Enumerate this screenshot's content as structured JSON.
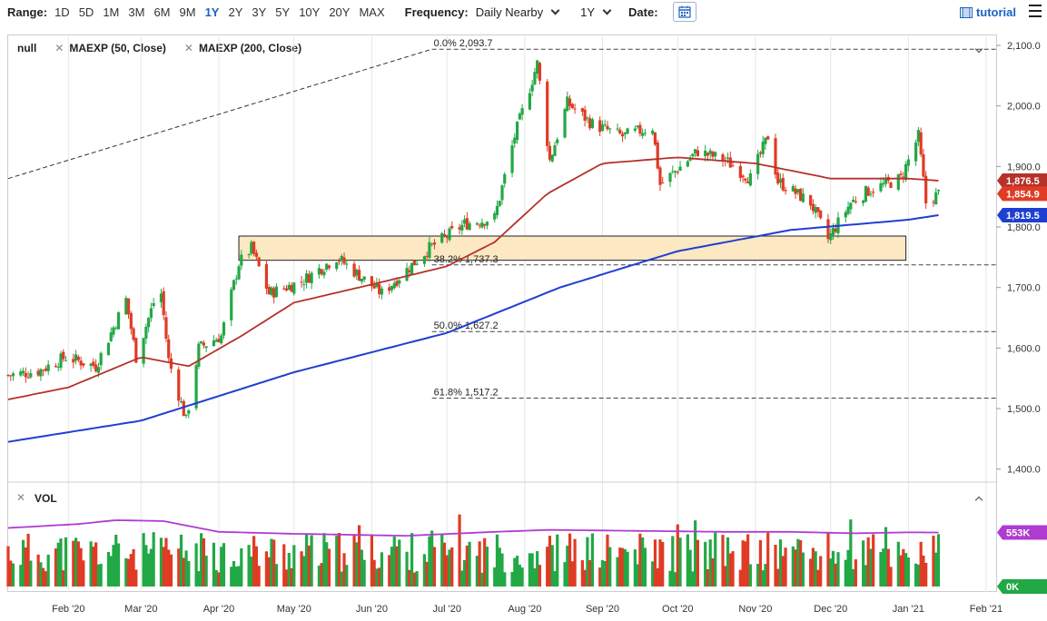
{
  "toolbar": {
    "range_label": "Range:",
    "ranges": [
      "1D",
      "5D",
      "1M",
      "3M",
      "6M",
      "9M",
      "1Y",
      "2Y",
      "3Y",
      "5Y",
      "10Y",
      "20Y",
      "MAX"
    ],
    "active_range": "1Y",
    "frequency_label": "Frequency:",
    "frequency_value": "Daily Nearby",
    "period_value": "1Y",
    "date_label": "Date:",
    "tutorial_label": "tutorial"
  },
  "legend": {
    "symbol": "null",
    "study1": "MAEXP (50, Close)",
    "study2": "MAEXP (200, Close)"
  },
  "volume": {
    "title": "VOL"
  },
  "colors": {
    "up": "#22a845",
    "down": "#e03b24",
    "ma50": "#b5322a",
    "ma200": "#1f3fd1",
    "vol_avg": "#b03bd1",
    "zone_fill": "#fde8c4",
    "zone_stroke": "#222222"
  },
  "chart_data": [
    {
      "type": "candlestick",
      "title": "",
      "ylim": [
        1380,
        2115
      ],
      "yticks": [
        1400,
        1500,
        1600,
        1700,
        1800,
        1900,
        2000,
        2100
      ],
      "ytick_labels": [
        "1,400.0",
        "1,500.0",
        "1,600.0",
        "1,700.0",
        "1,800.0",
        "1,900.0",
        "2,000.0",
        "2,100.0"
      ],
      "x_start": "2020-01-08",
      "x_end": "2021-02-05",
      "xtick_dates": [
        "2020-02-01",
        "2020-03-01",
        "2020-04-01",
        "2020-05-01",
        "2020-06-01",
        "2020-07-01",
        "2020-08-01",
        "2020-09-01",
        "2020-10-01",
        "2020-11-01",
        "2020-12-01",
        "2021-01-01",
        "2021-02-01"
      ],
      "xtick_labels": [
        "Feb '20",
        "Mar '20",
        "Apr '20",
        "May '20",
        "Jun '20",
        "Jul '20",
        "Aug '20",
        "Sep '20",
        "Oct '20",
        "Nov '20",
        "Dec '20",
        "Jan '21",
        "Feb '21"
      ],
      "price_path": [
        [
          "2020-01-08",
          1555
        ],
        [
          "2020-01-20",
          1562
        ],
        [
          "2020-01-31",
          1585
        ],
        [
          "2020-02-12",
          1570
        ],
        [
          "2020-02-24",
          1680
        ],
        [
          "2020-02-28",
          1585
        ],
        [
          "2020-03-06",
          1675
        ],
        [
          "2020-03-09",
          1690
        ],
        [
          "2020-03-12",
          1580
        ],
        [
          "2020-03-19",
          1480
        ],
        [
          "2020-03-24",
          1600
        ],
        [
          "2020-04-02",
          1620
        ],
        [
          "2020-04-09",
          1740
        ],
        [
          "2020-04-14",
          1765
        ],
        [
          "2020-04-21",
          1690
        ],
        [
          "2020-05-04",
          1710
        ],
        [
          "2020-05-18",
          1750
        ],
        [
          "2020-06-05",
          1690
        ],
        [
          "2020-06-24",
          1765
        ],
        [
          "2020-07-08",
          1805
        ],
        [
          "2020-07-20",
          1815
        ],
        [
          "2020-07-28",
          1950
        ],
        [
          "2020-08-06",
          2070
        ],
        [
          "2020-08-11",
          1910
        ],
        [
          "2020-08-18",
          2005
        ],
        [
          "2020-08-28",
          1970
        ],
        [
          "2020-09-09",
          1950
        ],
        [
          "2020-09-21",
          1965
        ],
        [
          "2020-09-24",
          1870
        ],
        [
          "2020-10-09",
          1925
        ],
        [
          "2020-10-20",
          1910
        ],
        [
          "2020-10-30",
          1880
        ],
        [
          "2020-11-06",
          1950
        ],
        [
          "2020-11-10",
          1875
        ],
        [
          "2020-11-23",
          1840
        ],
        [
          "2020-11-30",
          1780
        ],
        [
          "2020-12-09",
          1840
        ],
        [
          "2020-12-16",
          1860
        ],
        [
          "2020-12-29",
          1880
        ],
        [
          "2021-01-05",
          1950
        ],
        [
          "2021-01-08",
          1840
        ],
        [
          "2021-01-13",
          1855
        ]
      ],
      "ma50_path": [
        [
          "2020-01-08",
          1515
        ],
        [
          "2020-02-01",
          1535
        ],
        [
          "2020-03-01",
          1585
        ],
        [
          "2020-03-20",
          1570
        ],
        [
          "2020-04-10",
          1620
        ],
        [
          "2020-05-01",
          1675
        ],
        [
          "2020-06-01",
          1705
        ],
        [
          "2020-07-01",
          1735
        ],
        [
          "2020-07-20",
          1775
        ],
        [
          "2020-08-10",
          1855
        ],
        [
          "2020-09-01",
          1905
        ],
        [
          "2020-10-01",
          1915
        ],
        [
          "2020-11-01",
          1905
        ],
        [
          "2020-12-01",
          1880
        ],
        [
          "2021-01-01",
          1880
        ],
        [
          "2021-01-13",
          1876.5
        ]
      ],
      "ma200_path": [
        [
          "2020-01-08",
          1445
        ],
        [
          "2020-03-01",
          1480
        ],
        [
          "2020-05-01",
          1560
        ],
        [
          "2020-07-01",
          1625
        ],
        [
          "2020-08-15",
          1700
        ],
        [
          "2020-10-01",
          1760
        ],
        [
          "2020-11-15",
          1795
        ],
        [
          "2021-01-01",
          1812
        ],
        [
          "2021-01-13",
          1819.5
        ]
      ],
      "fibonacci": [
        {
          "label": "0.0% 2,093.7",
          "level": 2093.7
        },
        {
          "label": "38.2% 1,737.3",
          "level": 1737.3
        },
        {
          "label": "50.0% 1,627.2",
          "level": 1627.2
        },
        {
          "label": "61.8% 1,517.2",
          "level": 1517.2
        }
      ],
      "trendline": {
        "from": [
          "2020-01-08",
          1880
        ],
        "to": [
          "2020-06-25",
          2093.7
        ]
      },
      "support_zone": {
        "from": "2020-04-09",
        "to": "2020-12-31",
        "low": 1745,
        "high": 1785
      },
      "badges": [
        {
          "label": "1,876.5",
          "value": 1876.5,
          "color": "#b5322a"
        },
        {
          "label": "1,854.9",
          "value": 1854.9,
          "color": "#e03b24"
        },
        {
          "label": "1,819.5",
          "value": 1819.5,
          "color": "#1f3fd1"
        }
      ]
    },
    {
      "type": "bar",
      "title": "VOL",
      "ylim": [
        0,
        800000
      ],
      "badges": [
        {
          "label": "553K",
          "value": 553000,
          "color": "#b03bd1"
        },
        {
          "label": "0K",
          "value": 0,
          "color": "#22a845"
        }
      ],
      "avg_path": [
        [
          "2020-01-08",
          600000
        ],
        [
          "2020-02-05",
          640000
        ],
        [
          "2020-02-20",
          680000
        ],
        [
          "2020-03-10",
          670000
        ],
        [
          "2020-04-01",
          560000
        ],
        [
          "2020-05-01",
          540000
        ],
        [
          "2020-06-15",
          520000
        ],
        [
          "2020-07-20",
          560000
        ],
        [
          "2020-08-10",
          580000
        ],
        [
          "2020-09-15",
          570000
        ],
        [
          "2020-10-20",
          560000
        ],
        [
          "2020-11-15",
          560000
        ],
        [
          "2020-12-10",
          545000
        ],
        [
          "2021-01-01",
          555000
        ],
        [
          "2021-01-13",
          553000
        ]
      ]
    }
  ]
}
